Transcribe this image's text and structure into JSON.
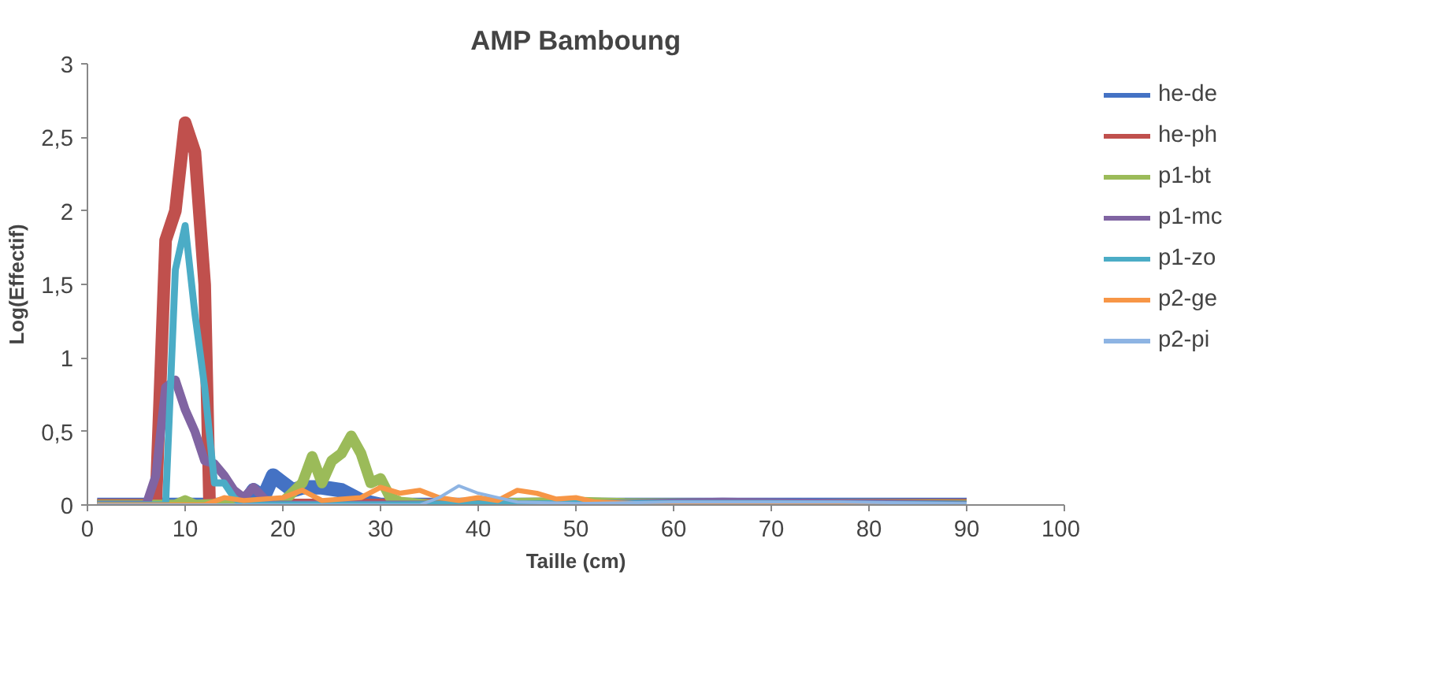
{
  "chart_data": {
    "type": "line",
    "title": "AMP Bamboung",
    "xlabel": "Taille (cm)",
    "ylabel": "Log(Effectif)",
    "xlim": [
      0,
      100
    ],
    "ylim": [
      0,
      3
    ],
    "xticks": [
      0,
      10,
      20,
      30,
      40,
      50,
      60,
      70,
      80,
      90,
      100
    ],
    "yticks": [
      0,
      {
        "value": 0.5,
        "label": "0,5"
      },
      1,
      {
        "value": 1.5,
        "label": "1,5"
      },
      2,
      {
        "value": 2.5,
        "label": "2,5"
      },
      3
    ],
    "grid": false,
    "legend": "right",
    "marker": "none",
    "line_style": "solid",
    "series": [
      {
        "name": "he-de",
        "color": "#4472c4",
        "x": [
          1,
          16,
          17,
          18,
          19,
          20,
          21,
          22,
          24,
          26,
          28,
          30,
          40,
          50,
          60,
          70,
          80,
          90
        ],
        "values": [
          0,
          0,
          0.1,
          0.05,
          0.2,
          0.15,
          0.1,
          0.12,
          0.12,
          0.1,
          0.03,
          0,
          0,
          0,
          0,
          0,
          0,
          0
        ]
      },
      {
        "name": "he-ph",
        "color": "#c0504d",
        "x": [
          1,
          7,
          8,
          9,
          10,
          11,
          12,
          12.5,
          13,
          20,
          30,
          40,
          50,
          60,
          70,
          80,
          90
        ],
        "values": [
          0,
          0,
          1.8,
          2.0,
          2.6,
          2.4,
          1.5,
          0,
          0,
          0,
          0,
          0,
          0,
          0,
          0,
          0,
          0
        ]
      },
      {
        "name": "p1-bt",
        "color": "#9bbb59",
        "x": [
          1,
          9,
          10,
          11,
          20,
          22,
          23,
          24,
          25,
          26,
          27,
          28,
          29,
          30,
          31,
          32,
          35,
          50,
          55,
          90
        ],
        "values": [
          0,
          0,
          0.03,
          0,
          0.02,
          0.15,
          0.33,
          0.15,
          0.3,
          0.35,
          0.47,
          0.35,
          0.15,
          0.18,
          0.05,
          0.02,
          0,
          0.02,
          0.01,
          0
        ]
      },
      {
        "name": "p1-mc",
        "color": "#8064a2",
        "x": [
          1,
          6,
          7,
          8,
          9,
          10,
          11,
          12,
          13,
          14,
          15,
          16,
          17,
          18,
          19,
          30,
          50,
          65,
          90
        ],
        "values": [
          0,
          0,
          0.2,
          0.8,
          0.85,
          0.65,
          0.5,
          0.3,
          0.28,
          0.2,
          0.1,
          0.05,
          0.12,
          0.05,
          0,
          0,
          0,
          0.02,
          0
        ]
      },
      {
        "name": "p1-zo",
        "color": "#4bacc6",
        "x": [
          1,
          8,
          9,
          10,
          11,
          12,
          13,
          14,
          15,
          16,
          30,
          50,
          70,
          90
        ],
        "values": [
          0,
          0,
          1.6,
          1.9,
          1.3,
          0.8,
          0.15,
          0.15,
          0.05,
          0,
          0,
          0.01,
          0.01,
          0
        ]
      },
      {
        "name": "p2-ge",
        "color": "#f79646",
        "x": [
          1,
          12,
          14,
          16,
          20,
          22,
          24,
          28,
          30,
          32,
          34,
          36,
          38,
          40,
          42,
          44,
          46,
          48,
          50,
          52,
          56,
          60,
          90
        ],
        "values": [
          0,
          0,
          0.05,
          0.03,
          0.05,
          0.1,
          0.03,
          0.05,
          0.12,
          0.08,
          0.1,
          0.05,
          0.03,
          0.05,
          0.03,
          0.1,
          0.08,
          0.04,
          0.05,
          0.02,
          0.01,
          0.01,
          0
        ]
      },
      {
        "name": "p2-pi",
        "color": "#8eb4e3",
        "x": [
          1,
          34,
          36,
          38,
          40,
          42,
          44,
          50,
          60,
          65,
          77,
          90
        ],
        "values": [
          0,
          0,
          0.05,
          0.13,
          0.08,
          0.05,
          0.02,
          0.01,
          0.02,
          0.02,
          0.02,
          0.01
        ]
      }
    ]
  }
}
